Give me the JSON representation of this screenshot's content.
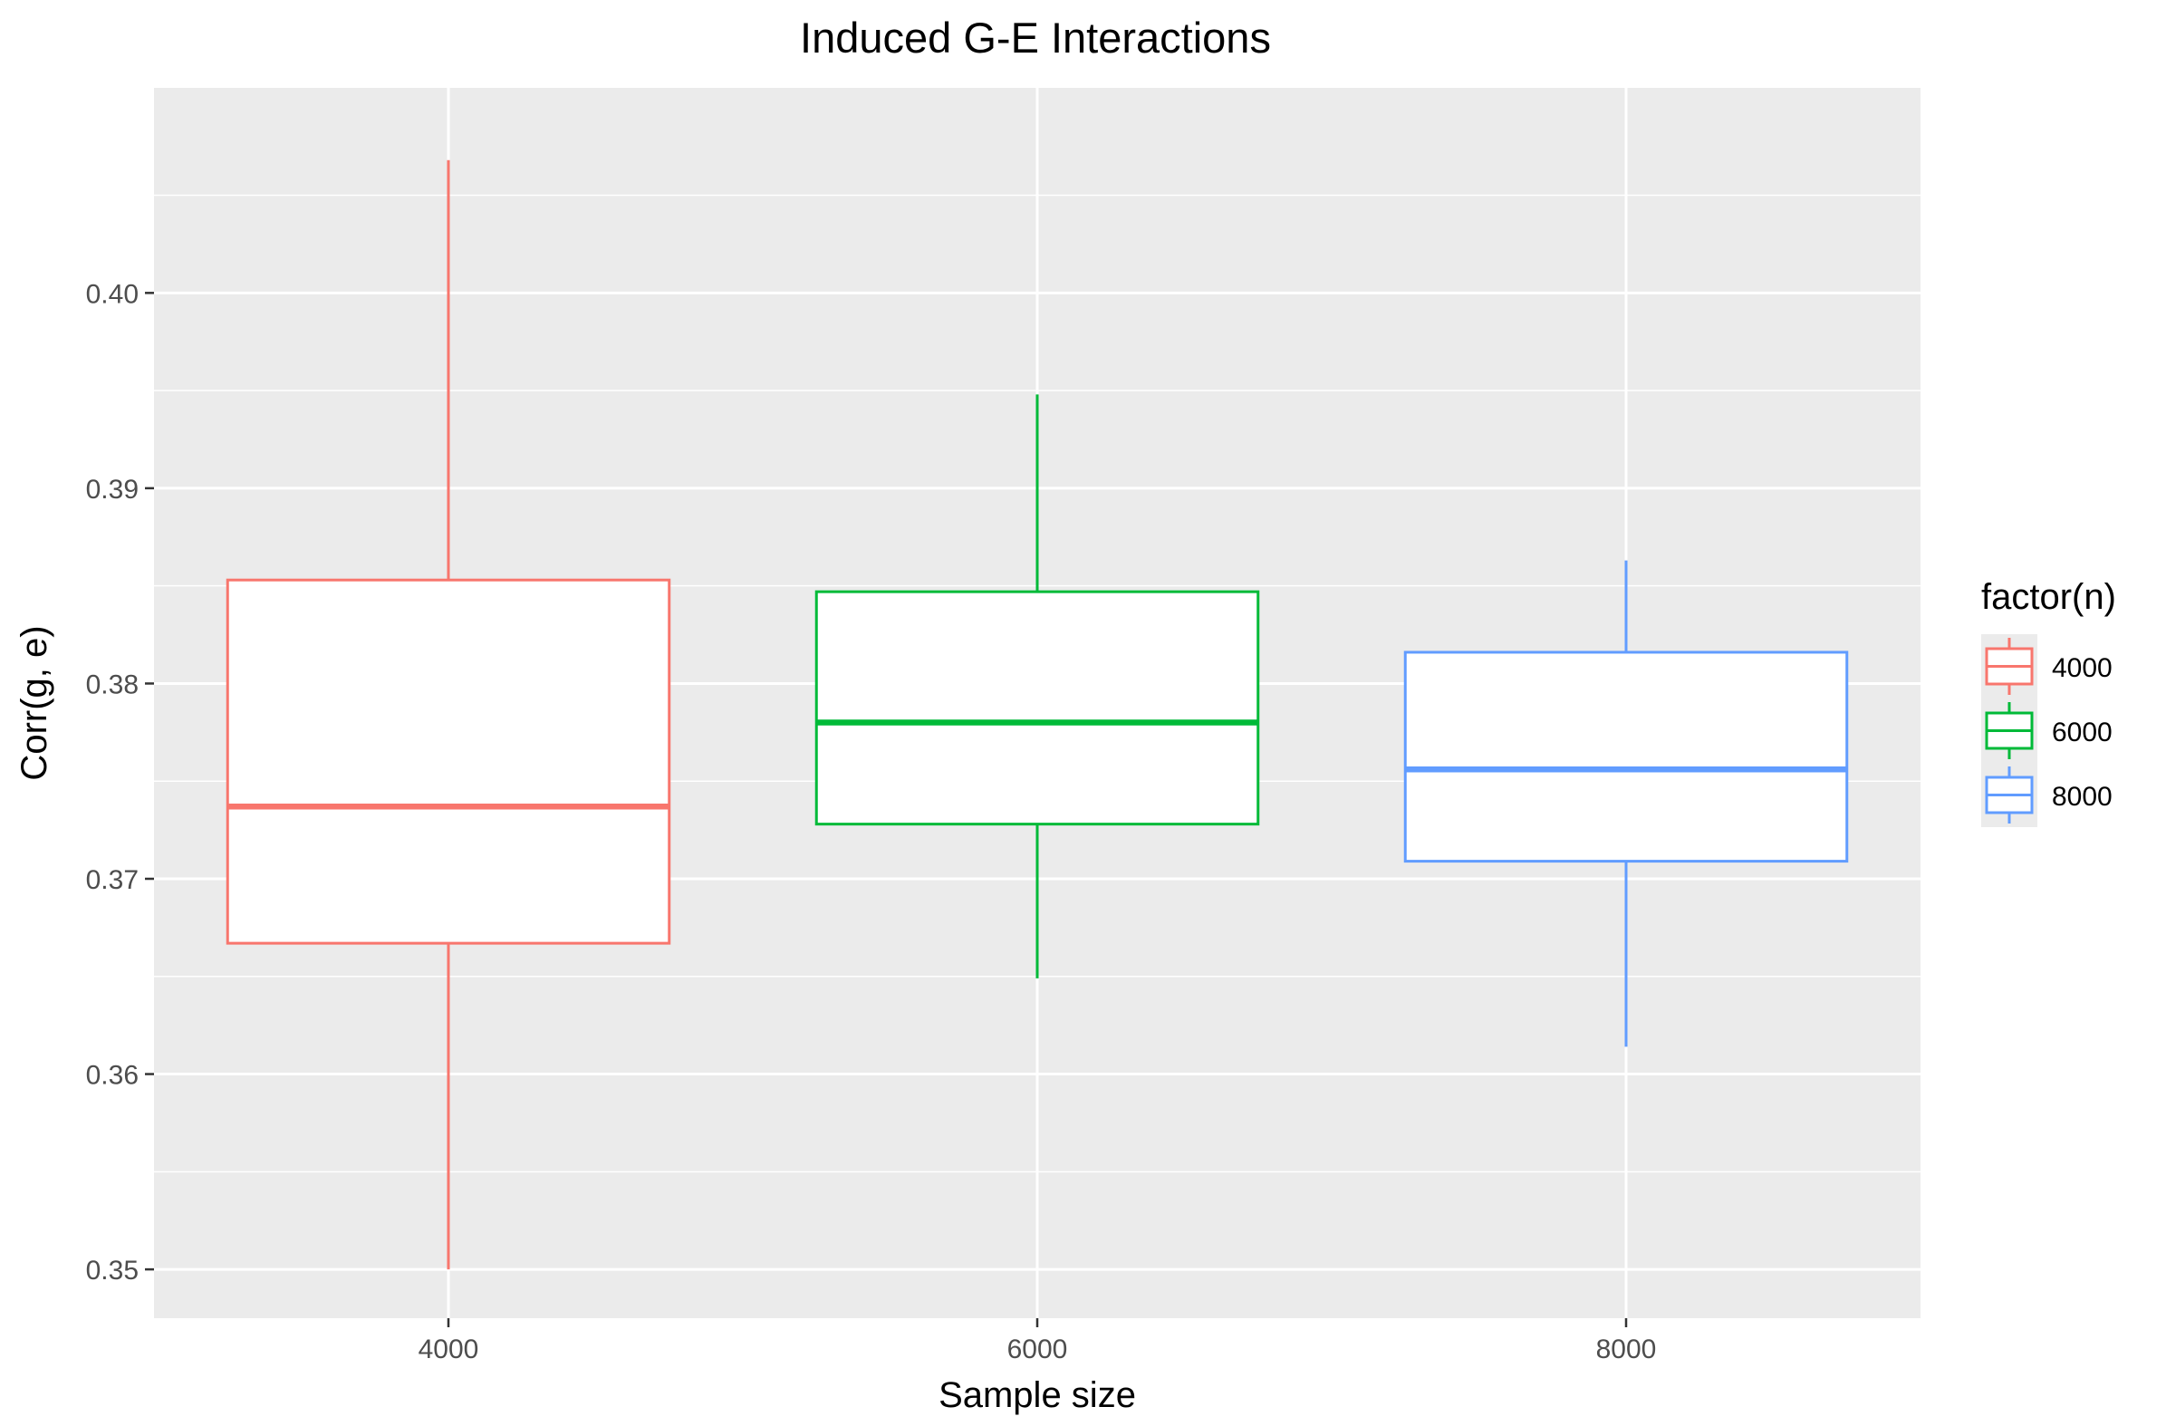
{
  "chart_data": {
    "type": "boxplot",
    "title": "Induced G-E Interactions",
    "xlabel": "Sample size",
    "ylabel": "Corr(g, e)",
    "categories": [
      "4000",
      "6000",
      "8000"
    ],
    "ylim": [
      0.3475,
      0.4105
    ],
    "y_ticks": [
      0.35,
      0.36,
      0.37,
      0.38,
      0.39,
      0.4
    ],
    "y_tick_labels": [
      "0.35",
      "0.36",
      "0.37",
      "0.38",
      "0.39",
      "0.40"
    ],
    "grid": true,
    "legend_position": "right",
    "legend_title": "factor(n)",
    "series": [
      {
        "name": "4000",
        "color": "#F8766D",
        "min": 0.35,
        "q1": 0.3667,
        "median": 0.3737,
        "q3": 0.3853,
        "max": 0.4068
      },
      {
        "name": "6000",
        "color": "#00BA38",
        "min": 0.3649,
        "q1": 0.3728,
        "median": 0.378,
        "q3": 0.3847,
        "max": 0.3948
      },
      {
        "name": "8000",
        "color": "#619CFF",
        "min": 0.3614,
        "q1": 0.3709,
        "median": 0.3756,
        "q3": 0.3816,
        "max": 0.3863
      }
    ]
  }
}
